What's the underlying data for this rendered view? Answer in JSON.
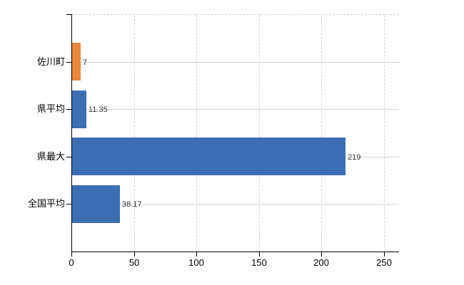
{
  "chart_data": {
    "type": "bar",
    "orientation": "horizontal",
    "title": "",
    "xlabel": "",
    "ylabel": "",
    "categories": [
      "佐川町",
      "県平均",
      "県最大",
      "全国平均"
    ],
    "values": [
      7,
      11.35,
      219,
      38.17
    ],
    "value_labels": [
      "7",
      "11.35",
      "219",
      "38.17"
    ],
    "bar_colors": [
      "#e9873b",
      "#3d6eb4",
      "#3d6eb4",
      "#3d6eb4"
    ],
    "xlim": [
      0,
      250
    ],
    "x_ticks": [
      0,
      50,
      100,
      150,
      200,
      250
    ],
    "x_tick_labels": [
      "0",
      "50",
      "100",
      "150",
      "200",
      "250"
    ],
    "grid": {
      "vertical": "dashed",
      "horizontal_at_categories": "solid",
      "top_border": "dashed"
    },
    "legend": null
  },
  "colors": {
    "bar_blue": "#3d6eb4",
    "bar_orange": "#e9873b",
    "gridline": "#d3d3d3",
    "axis": "#000000",
    "category_text": "#000000",
    "value_text": "#333333",
    "background": "#ffffff"
  }
}
